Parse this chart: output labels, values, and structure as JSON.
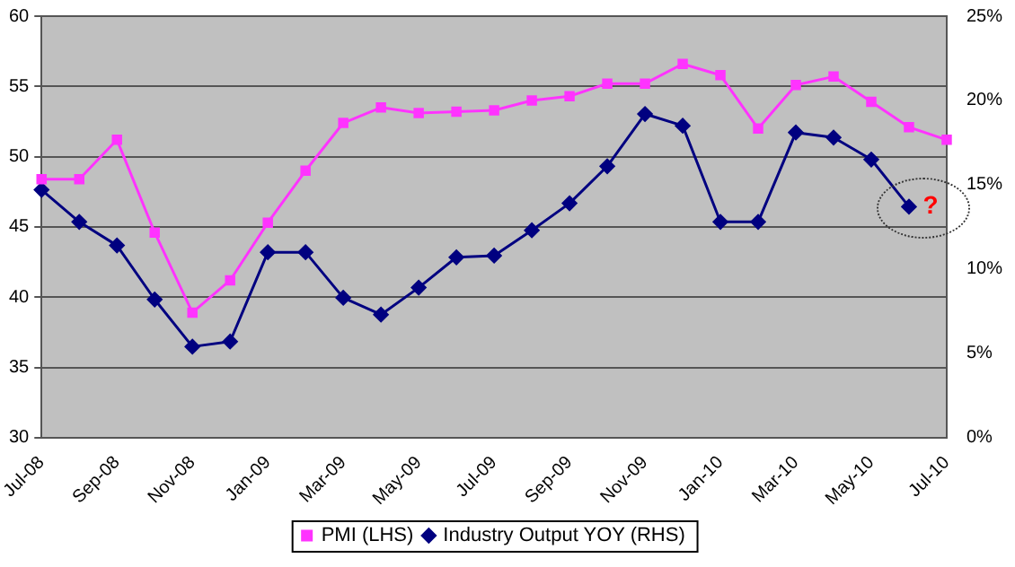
{
  "chart_data": {
    "type": "line",
    "categories": [
      "Jul-08",
      null,
      "Sep-08",
      null,
      "Nov-08",
      null,
      "Jan-09",
      null,
      "Mar-09",
      null,
      "May-09",
      null,
      "Jul-09",
      null,
      "Sep-09",
      null,
      "Nov-09",
      null,
      "Jan-10",
      null,
      "Mar-10",
      null,
      "May-10",
      null,
      "Jul-10"
    ],
    "series": [
      {
        "name": "PMI (LHS)",
        "color": "#ff33ff",
        "marker": "square",
        "values": [
          48.4,
          48.4,
          51.2,
          44.6,
          38.9,
          41.2,
          45.3,
          49.0,
          52.4,
          53.5,
          53.1,
          53.2,
          53.3,
          54.0,
          54.3,
          55.2,
          55.2,
          56.6,
          55.8,
          52.0,
          55.1,
          55.7,
          53.9,
          52.1,
          51.2
        ]
      },
      {
        "name": "Industry Output YOY (RHS)",
        "color": "#000080",
        "marker": "diamond",
        "axis": "y2",
        "values": [
          14.7,
          12.8,
          11.4,
          8.2,
          5.4,
          5.7,
          11.0,
          11.0,
          8.3,
          7.3,
          8.9,
          10.7,
          10.8,
          12.3,
          13.9,
          16.1,
          19.2,
          18.5,
          12.8,
          12.8,
          18.1,
          17.8,
          16.5,
          13.7,
          null
        ]
      }
    ],
    "ylim": [
      30,
      60
    ],
    "yticks": [
      30,
      35,
      40,
      45,
      50,
      55,
      60
    ],
    "y2lim": [
      0,
      25
    ],
    "y2ticks": [
      {
        "value": 0,
        "label": "0%"
      },
      {
        "value": 5,
        "label": "5%"
      },
      {
        "value": 10,
        "label": "10%"
      },
      {
        "value": 15,
        "label": "15%"
      },
      {
        "value": 20,
        "label": "20%"
      },
      {
        "value": 25,
        "label": "25%"
      }
    ],
    "grid": "y",
    "legend": "bottom",
    "line_style": "solid",
    "annotations": [
      "?"
    ]
  }
}
